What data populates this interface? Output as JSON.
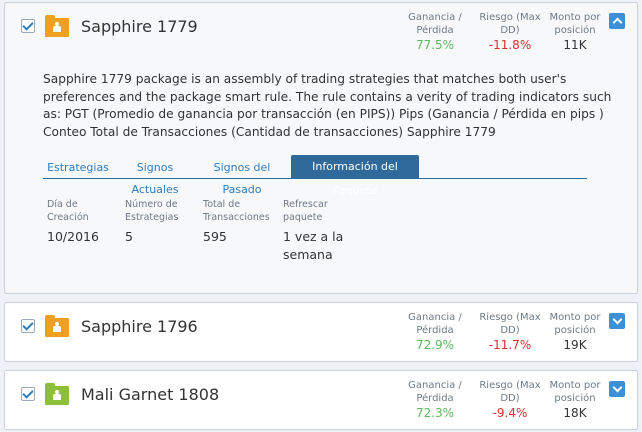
{
  "colors": {
    "orange": "#f0a020",
    "green": "#8bbf3c",
    "accent": "#3d8fd6",
    "tab_active": "#2f6a9a",
    "gain": "#5cb85c",
    "loss": "#e02d2d"
  },
  "stat_labels": {
    "gain": "Ganancia / Pérdida",
    "risk": "Riesgo (Max DD)",
    "amount": "Monto por posición"
  },
  "packages": [
    {
      "name": "Sapphire 1779",
      "folder_color": "orange",
      "gain": "77.5%",
      "risk": "-11.8%",
      "amount": "11K",
      "toggle_icon": "chevron-up-icon"
    },
    {
      "name": "Sapphire 1796",
      "folder_color": "orange",
      "gain": "72.9%",
      "risk": "-11.7%",
      "amount": "19K",
      "toggle_icon": "chevron-down-icon"
    },
    {
      "name": "Mali Garnet 1808",
      "folder_color": "green",
      "gain": "72.3%",
      "risk": "-9.4%",
      "amount": "18K",
      "toggle_icon": "chevron-down-icon"
    }
  ],
  "description": "Sapphire 1779 package is an assembly of trading strategies that matches both user's preferences and the package smart rule. The rule contains a verity of trading indicators such as: PGT (Promedio de ganancia por transacción (en PIPS)) Pips (Ganancia / Pérdida en pips ) Conteo Total de Transacciones (Cantidad de transacciones) Sapphire 1779",
  "tabs": [
    {
      "label": "Estrategias"
    },
    {
      "label": "Signos Actuales"
    },
    {
      "label": "Signos del Pasado"
    },
    {
      "label": "Información del Paquete",
      "active": true
    }
  ],
  "info": [
    {
      "label": "Día de Creación",
      "value": "10/2016"
    },
    {
      "label": "Número de Estrategias",
      "value": "5"
    },
    {
      "label": "Total de Transacciones",
      "value": "595"
    },
    {
      "label": "Refrescar paquete",
      "value": "1 vez a la semana"
    }
  ]
}
